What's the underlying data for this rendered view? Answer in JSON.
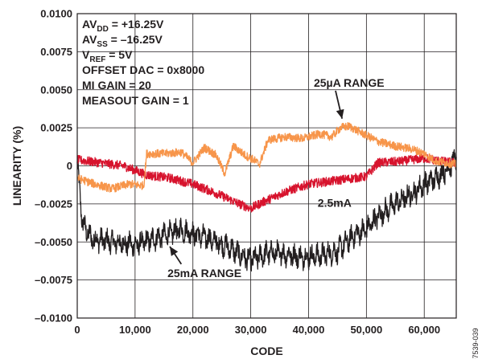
{
  "chart_data": {
    "type": "line",
    "xlabel": "CODE",
    "ylabel": "LINEARITY (%)",
    "xlim": [
      0,
      65535
    ],
    "ylim": [
      -0.01,
      0.01
    ],
    "x_ticks": [
      0,
      10000,
      20000,
      30000,
      40000,
      50000,
      60000
    ],
    "x_tick_labels": [
      "0",
      "10,000",
      "20,000",
      "30,000",
      "40,000",
      "50,000",
      "60,000"
    ],
    "y_ticks": [
      0.01,
      0.0075,
      0.005,
      0.0025,
      0,
      -0.0025,
      -0.005,
      -0.0075,
      -0.01
    ],
    "y_tick_labels": [
      "0.0100",
      "0.0075",
      "0.0050",
      "0.0025",
      "0",
      "–0.0025",
      "–0.0050",
      "–0.0075",
      "–0.0100"
    ],
    "grid": true,
    "conditions": [
      {
        "parts": [
          [
            "AV",
            ""
          ],
          [
            "DD",
            "sub"
          ],
          [
            " = +16.25V",
            ""
          ]
        ]
      },
      {
        "parts": [
          [
            "AV",
            ""
          ],
          [
            "SS",
            "sub"
          ],
          [
            " = –16.25V",
            ""
          ]
        ]
      },
      {
        "parts": [
          [
            "V",
            ""
          ],
          [
            "REF",
            "sub"
          ],
          [
            " = 5V",
            ""
          ]
        ]
      },
      {
        "parts": [
          [
            "OFFSET DAC = 0x8000",
            ""
          ]
        ]
      },
      {
        "parts": [
          [
            "MI GAIN = 20",
            ""
          ]
        ]
      },
      {
        "parts": [
          [
            "MEASOUT GAIN = 1",
            ""
          ]
        ]
      }
    ],
    "series": [
      {
        "name": "25µA RANGE",
        "color": "#f7954a",
        "noise": 0.00055,
        "x": [
          0,
          3000,
          6000,
          9000,
          11500,
          12000,
          15000,
          18000,
          20000,
          22000,
          24000,
          25500,
          27000,
          29000,
          30500,
          31500,
          33000,
          36000,
          39000,
          42000,
          44000,
          45500,
          47000,
          49000,
          52000,
          55000,
          58000,
          60000,
          62000,
          64000,
          65535
        ],
        "y": [
          -0.0008,
          -0.0012,
          -0.0015,
          -0.0012,
          -0.0013,
          0.0008,
          0.0008,
          0.0009,
          0.0002,
          0.0012,
          0.0007,
          -0.0005,
          0.0013,
          0.0007,
          0.0004,
          0.0001,
          0.0017,
          0.0019,
          0.0018,
          0.0021,
          0.0019,
          0.0025,
          0.0026,
          0.0022,
          0.0016,
          0.0013,
          0.0011,
          0.0008,
          0.0003,
          0.0002,
          0.0001
        ]
      },
      {
        "name": "2.5mA",
        "color": "#d7132d",
        "noise": 0.0006,
        "x": [
          0,
          4000,
          8000,
          12000,
          16000,
          20000,
          24000,
          28000,
          30000,
          32000,
          36000,
          40000,
          44000,
          48000,
          50000,
          52000,
          56000,
          60000,
          63000,
          65535
        ],
        "y": [
          0.0004,
          0.0002,
          0.0,
          -0.0006,
          -0.0008,
          -0.0012,
          -0.0018,
          -0.0025,
          -0.0028,
          -0.0024,
          -0.0017,
          -0.0012,
          -0.001,
          -0.0008,
          -0.0007,
          0.0002,
          0.0003,
          0.0005,
          0.0003,
          0.0002
        ]
      },
      {
        "name": "25mA RANGE",
        "color": "#231f20",
        "noise": 0.0011,
        "x": [
          0,
          400,
          900,
          2500,
          6000,
          10000,
          14000,
          18000,
          22000,
          26000,
          28000,
          30000,
          31500,
          33000,
          36000,
          39000,
          42000,
          45000,
          48000,
          50000,
          52000,
          55000,
          58000,
          60000,
          62000,
          64000,
          65535
        ],
        "y": [
          0.0001,
          -0.0015,
          -0.0038,
          -0.0048,
          -0.005,
          -0.0052,
          -0.0047,
          -0.0042,
          -0.0047,
          -0.0053,
          -0.0058,
          -0.0062,
          -0.006,
          -0.0057,
          -0.0058,
          -0.006,
          -0.0059,
          -0.0056,
          -0.0045,
          -0.0042,
          -0.0033,
          -0.0025,
          -0.0018,
          -0.0012,
          -0.0008,
          -0.0002,
          0.0005
        ]
      }
    ],
    "annotations": [
      {
        "text": "25µA RANGE",
        "series": 0,
        "points_to": [
          45800,
          0.0031
        ],
        "label_at": [
          47000,
          0.0052
        ]
      },
      {
        "text": "2.5mA",
        "series": 1,
        "label_at": [
          44500,
          -0.0027
        ]
      },
      {
        "text": "25mA RANGE",
        "series": 2,
        "points_to": [
          16000,
          -0.0053
        ],
        "label_at": [
          22000,
          -0.0073
        ]
      }
    ],
    "figure_id": "07539-039"
  }
}
